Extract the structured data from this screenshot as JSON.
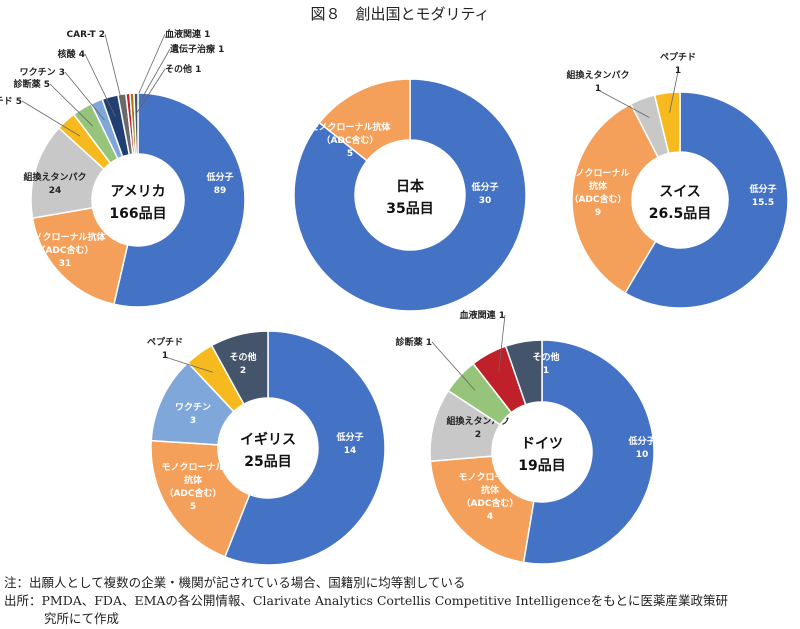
{
  "title": "図８　創出国とモダリティ",
  "chart_data": [
    {
      "type": "pie",
      "donut": true,
      "center_lines": [
        "アメリカ",
        "166品目"
      ],
      "slices": [
        {
          "name_lines": [
            "低分子"
          ],
          "value": 89,
          "value_label": "89",
          "color": "#4472C4"
        },
        {
          "name_lines": [
            "モノクローナル抗体",
            "（ADC含む）"
          ],
          "value": 31,
          "value_label": "31",
          "color": "#F4A05A"
        },
        {
          "name_lines": [
            "組換えタンパク"
          ],
          "value": 24,
          "value_label": "24",
          "color": "#C8C8C8"
        },
        {
          "name_lines": [
            "ペプチド"
          ],
          "value": 5,
          "value_label": "5",
          "color": "#F7BA1E",
          "inline": true
        },
        {
          "name_lines": [
            "診断薬"
          ],
          "value": 5,
          "value_label": "5",
          "color": "#96C47A",
          "inline": true
        },
        {
          "name_lines": [
            "ワクチン"
          ],
          "value": 3,
          "value_label": "3",
          "color": "#7FA7DA",
          "inline": true
        },
        {
          "name_lines": [
            "核酸"
          ],
          "value": 4,
          "value_label": "4",
          "color": "#223F73",
          "inline": true
        },
        {
          "name_lines": [
            "CAR-T"
          ],
          "value": 2,
          "value_label": "2",
          "color": "#6A6A6A",
          "inline": true
        },
        {
          "name_lines": [
            "血液関連"
          ],
          "value": 1,
          "value_label": "1",
          "color": "#C0202A",
          "inline": true
        },
        {
          "name_lines": [
            "遺伝子治療"
          ],
          "value": 1,
          "value_label": "1",
          "color": "#A07A10",
          "inline": true
        },
        {
          "name_lines": [
            "その他"
          ],
          "value": 1,
          "value_label": "1",
          "color": "#44546A",
          "inline": true
        }
      ]
    },
    {
      "type": "pie",
      "donut": true,
      "center_lines": [
        "日本",
        "35品目"
      ],
      "slices": [
        {
          "name_lines": [
            "低分子"
          ],
          "value": 30,
          "value_label": "30",
          "color": "#4472C4"
        },
        {
          "name_lines": [
            "モノクローナル抗体",
            "（ADC含む）"
          ],
          "value": 5,
          "value_label": "5",
          "color": "#F4A05A"
        }
      ]
    },
    {
      "type": "pie",
      "donut": true,
      "center_lines": [
        "スイス",
        "26.5品目"
      ],
      "slices": [
        {
          "name_lines": [
            "低分子"
          ],
          "value": 15.5,
          "value_label": "15.5",
          "color": "#4472C4"
        },
        {
          "name_lines": [
            "モノクローナル",
            "抗体",
            "（ADC含む）"
          ],
          "value": 9,
          "value_label": "9",
          "color": "#F4A05A"
        },
        {
          "name_lines": [
            "組換えタンパク"
          ],
          "value": 1,
          "value_label": "1",
          "color": "#C8C8C8"
        },
        {
          "name_lines": [
            "ペプチド"
          ],
          "value": 1,
          "value_label": "1",
          "color": "#F7BA1E"
        }
      ]
    },
    {
      "type": "pie",
      "donut": true,
      "center_lines": [
        "イギリス",
        "25品目"
      ],
      "slices": [
        {
          "name_lines": [
            "低分子"
          ],
          "value": 14,
          "value_label": "14",
          "color": "#4472C4"
        },
        {
          "name_lines": [
            "モノクローナル",
            "抗体",
            "（ADC含む）"
          ],
          "value": 5,
          "value_label": "5",
          "color": "#F4A05A"
        },
        {
          "name_lines": [
            "ワクチン"
          ],
          "value": 3,
          "value_label": "3",
          "color": "#7FA7DA"
        },
        {
          "name_lines": [
            "ペプチド"
          ],
          "value": 1,
          "value_label": "1",
          "color": "#F7BA1E"
        },
        {
          "name_lines": [
            "その他"
          ],
          "value": 2,
          "value_label": "2",
          "color": "#44546A"
        }
      ]
    },
    {
      "type": "pie",
      "donut": true,
      "center_lines": [
        "ドイツ",
        "19品目"
      ],
      "slices": [
        {
          "name_lines": [
            "低分子"
          ],
          "value": 10,
          "value_label": "10",
          "color": "#4472C4"
        },
        {
          "name_lines": [
            "モノクローナル",
            "抗体",
            "（ADC含む）"
          ],
          "value": 4,
          "value_label": "4",
          "color": "#F4A05A"
        },
        {
          "name_lines": [
            "組換えタンパク"
          ],
          "value": 2,
          "value_label": "2",
          "color": "#C8C8C8"
        },
        {
          "name_lines": [
            "診断薬"
          ],
          "value": 1,
          "value_label": "1",
          "color": "#96C47A",
          "inline": true
        },
        {
          "name_lines": [
            "血液関連"
          ],
          "value": 1,
          "value_label": "1",
          "color": "#C0202A",
          "inline": true
        },
        {
          "name_lines": [
            "その他"
          ],
          "value": 1,
          "value_label": "1",
          "color": "#44546A"
        }
      ]
    }
  ],
  "notes": {
    "note1": "注：出願人として複数の企業・機関が記されている場合、国籍別に均等割している",
    "source1": "出所：PMDA、FDA、EMAの各公開情報、Clarivate Analytics Cortellis Competitive Intelligenceをもとに医薬産業政策研",
    "source2": "究所にて作成"
  }
}
